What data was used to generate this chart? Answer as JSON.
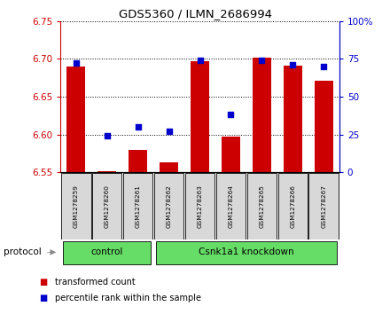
{
  "title": "GDS5360 / ILMN_2686994",
  "samples": [
    "GSM1278259",
    "GSM1278260",
    "GSM1278261",
    "GSM1278262",
    "GSM1278263",
    "GSM1278264",
    "GSM1278265",
    "GSM1278266",
    "GSM1278267"
  ],
  "transformed_count": [
    6.69,
    6.551,
    6.58,
    6.563,
    6.697,
    6.597,
    6.701,
    6.691,
    6.671
  ],
  "percentile_rank": [
    72,
    24,
    30,
    27,
    74,
    38,
    74,
    71,
    70
  ],
  "ylim_left": [
    6.55,
    6.75
  ],
  "ylim_right": [
    0,
    100
  ],
  "yticks_left": [
    6.55,
    6.6,
    6.65,
    6.7,
    6.75
  ],
  "yticks_right": [
    0,
    25,
    50,
    75,
    100
  ],
  "ytick_labels_right": [
    "0",
    "25",
    "50",
    "75",
    "100%"
  ],
  "control_count": 3,
  "knockdown_count": 6,
  "control_label": "control",
  "knockdown_label": "Csnk1a1 knockdown",
  "protocol_label": "protocol",
  "bar_color": "#cc0000",
  "dot_color": "#0000cc",
  "bar_bottom": 6.55,
  "plot_bg": "#ffffff",
  "legend1": "transformed count",
  "legend2": "percentile rank within the sample",
  "left_tick_color": "#cc0000",
  "right_tick_color": "#0000cc",
  "sample_box_color": "#d8d8d8",
  "protocol_box_color": "#66dd66"
}
